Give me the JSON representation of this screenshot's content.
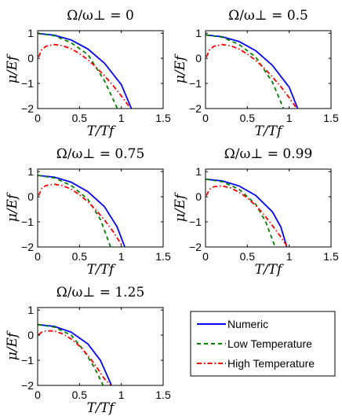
{
  "chart_data": [
    {
      "type": "line",
      "title": "Ω/ω⊥ = 0",
      "xlabel": "T/Tf",
      "ylabel": "μ/Ef",
      "xlim": [
        0,
        1.5
      ],
      "ylim": [
        -2,
        1.1
      ],
      "xticks": [
        "0",
        "0.5",
        "1",
        "1.5"
      ],
      "yticks": [
        "1",
        "0",
        "−1",
        "−2"
      ],
      "series": [
        {
          "name": "Numeric",
          "color": "#0000ff",
          "dash": "solid",
          "x": [
            0,
            0.2,
            0.4,
            0.6,
            0.8,
            1.0,
            1.12
          ],
          "y": [
            0.99,
            0.92,
            0.73,
            0.37,
            -0.2,
            -1.05,
            -2.0
          ]
        },
        {
          "name": "Low Temperature",
          "color": "#008000",
          "dash": "dashed",
          "x": [
            0,
            0.2,
            0.4,
            0.6,
            0.8,
            0.95
          ],
          "y": [
            0.99,
            0.9,
            0.62,
            0.15,
            -0.9,
            -1.98
          ]
        },
        {
          "name": "High Temperature",
          "color": "#ff0000",
          "dash": "dashdot",
          "x": [
            0.01,
            0.05,
            0.1,
            0.2,
            0.3,
            0.4,
            0.5,
            0.6,
            0.7,
            0.8,
            0.9,
            1.0,
            1.1
          ],
          "y": [
            0.05,
            0.35,
            0.48,
            0.55,
            0.5,
            0.38,
            0.19,
            -0.06,
            -0.36,
            -0.7,
            -1.08,
            -1.5,
            -1.95
          ]
        }
      ]
    },
    {
      "type": "line",
      "title": "Ω/ω⊥ = 0.5",
      "xlabel": "T/Tf",
      "ylabel": "μ/Ef",
      "xlim": [
        0,
        1.5
      ],
      "ylim": [
        -2,
        1.1
      ],
      "xticks": [
        "0",
        "0.5",
        "1",
        "1.5"
      ],
      "yticks": [
        "1",
        "0",
        "−1",
        "−2"
      ],
      "series": [
        {
          "name": "Numeric",
          "color": "#0000ff",
          "dash": "solid",
          "x": [
            0,
            0.2,
            0.4,
            0.6,
            0.8,
            1.0,
            1.1
          ],
          "y": [
            0.93,
            0.86,
            0.67,
            0.3,
            -0.28,
            -1.15,
            -1.98
          ]
        },
        {
          "name": "Low Temperature",
          "color": "#008000",
          "dash": "dashed",
          "x": [
            0,
            0.2,
            0.4,
            0.6,
            0.8,
            0.93
          ],
          "y": [
            0.93,
            0.84,
            0.55,
            0.05,
            -0.95,
            -1.98
          ]
        },
        {
          "name": "High Temperature",
          "color": "#ff0000",
          "dash": "dashdot",
          "x": [
            0.01,
            0.05,
            0.1,
            0.2,
            0.3,
            0.4,
            0.5,
            0.6,
            0.7,
            0.8,
            0.9,
            1.0,
            1.08
          ],
          "y": [
            0.05,
            0.35,
            0.48,
            0.55,
            0.5,
            0.37,
            0.17,
            -0.08,
            -0.39,
            -0.74,
            -1.13,
            -1.57,
            -1.95
          ]
        }
      ]
    },
    {
      "type": "line",
      "title": "Ω/ω⊥ = 0.75",
      "xlabel": "T/Tf",
      "ylabel": "μ/Ef",
      "xlim": [
        0,
        1.5
      ],
      "ylim": [
        -2,
        1.1
      ],
      "xticks": [
        "0",
        "0.5",
        "1",
        "1.5"
      ],
      "yticks": [
        "1",
        "0",
        "−1",
        "−2"
      ],
      "series": [
        {
          "name": "Numeric",
          "color": "#0000ff",
          "dash": "solid",
          "x": [
            0,
            0.2,
            0.4,
            0.6,
            0.8,
            0.95,
            1.04
          ],
          "y": [
            0.85,
            0.78,
            0.58,
            0.2,
            -0.4,
            -1.2,
            -1.98
          ]
        },
        {
          "name": "Low Temperature",
          "color": "#008000",
          "dash": "dashed",
          "x": [
            0,
            0.2,
            0.4,
            0.6,
            0.75,
            0.87
          ],
          "y": [
            0.85,
            0.75,
            0.45,
            -0.1,
            -0.9,
            -1.98
          ]
        },
        {
          "name": "High Temperature",
          "color": "#ff0000",
          "dash": "dashdot",
          "x": [
            0.01,
            0.05,
            0.1,
            0.2,
            0.3,
            0.4,
            0.5,
            0.6,
            0.7,
            0.8,
            0.9,
            1.0
          ],
          "y": [
            0.05,
            0.33,
            0.45,
            0.5,
            0.44,
            0.3,
            0.08,
            -0.2,
            -0.54,
            -0.93,
            -1.38,
            -1.9
          ]
        }
      ]
    },
    {
      "type": "line",
      "title": "Ω/ω⊥ = 0.99",
      "xlabel": "T/Tf",
      "ylabel": "μ/Ef",
      "xlim": [
        0,
        1.5
      ],
      "ylim": [
        -2,
        1.1
      ],
      "xticks": [
        "0",
        "0.5",
        "1",
        "1.5"
      ],
      "yticks": [
        "1",
        "0",
        "−1",
        "−2"
      ],
      "series": [
        {
          "name": "Numeric",
          "color": "#0000ff",
          "dash": "solid",
          "x": [
            0,
            0.2,
            0.4,
            0.6,
            0.8,
            0.9,
            0.97
          ],
          "y": [
            0.7,
            0.63,
            0.43,
            0.05,
            -0.6,
            -1.2,
            -1.98
          ]
        },
        {
          "name": "Low Temperature",
          "color": "#008000",
          "dash": "dashed",
          "x": [
            0,
            0.2,
            0.4,
            0.6,
            0.72,
            0.83
          ],
          "y": [
            0.7,
            0.6,
            0.3,
            -0.3,
            -1.0,
            -1.98
          ]
        },
        {
          "name": "High Temperature",
          "color": "#ff0000",
          "dash": "dashdot",
          "x": [
            0.01,
            0.05,
            0.1,
            0.2,
            0.3,
            0.4,
            0.5,
            0.6,
            0.7,
            0.8,
            0.9,
            0.97
          ],
          "y": [
            0.05,
            0.3,
            0.4,
            0.43,
            0.35,
            0.18,
            -0.05,
            -0.35,
            -0.72,
            -1.15,
            -1.6,
            -1.95
          ]
        }
      ]
    },
    {
      "type": "line",
      "title": "Ω/ω⊥ = 1.25",
      "xlabel": "T/Tf",
      "ylabel": "μ/Ef",
      "xlim": [
        0,
        1.5
      ],
      "ylim": [
        -2,
        1.1
      ],
      "xticks": [
        "0",
        "0.5",
        "1",
        "1.5"
      ],
      "yticks": [
        "1",
        "0",
        "−1",
        "−2"
      ],
      "series": [
        {
          "name": "Numeric",
          "color": "#0000ff",
          "dash": "solid",
          "x": [
            0,
            0.2,
            0.4,
            0.6,
            0.75,
            0.88
          ],
          "y": [
            0.42,
            0.35,
            0.12,
            -0.35,
            -1.0,
            -1.98
          ]
        },
        {
          "name": "Low Temperature",
          "color": "#008000",
          "dash": "dashed",
          "x": [
            0,
            0.2,
            0.4,
            0.55,
            0.68,
            0.78
          ],
          "y": [
            0.42,
            0.32,
            0.0,
            -0.6,
            -1.3,
            -1.98
          ]
        },
        {
          "name": "High Temperature",
          "color": "#ff0000",
          "dash": "dashdot",
          "x": [
            0.01,
            0.05,
            0.1,
            0.2,
            0.3,
            0.4,
            0.5,
            0.6,
            0.7,
            0.8,
            0.87
          ],
          "y": [
            0.02,
            0.12,
            0.17,
            0.17,
            0.05,
            -0.15,
            -0.43,
            -0.8,
            -1.25,
            -1.75,
            -1.98
          ]
        }
      ]
    }
  ],
  "legend": {
    "items": [
      {
        "label": "Numeric",
        "color": "#0000ff",
        "dash": "solid"
      },
      {
        "label": "Low Temperature",
        "color": "#008000",
        "dash": "dashed"
      },
      {
        "label": "High Temperature",
        "color": "#ff0000",
        "dash": "dashdot"
      }
    ]
  }
}
